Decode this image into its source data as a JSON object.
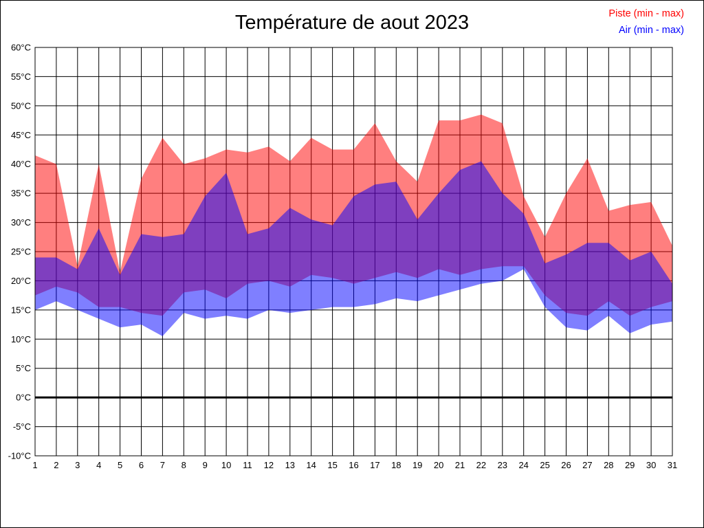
{
  "title": "Température de aout 2023",
  "legend": {
    "piste_label": "Piste (min - max)",
    "air_label": "Air (min - max)",
    "piste_color": "#ff0000",
    "air_color": "#0000ff"
  },
  "chart_data": {
    "type": "area",
    "title": "Température de aout 2023",
    "legend_position": "top-right",
    "grid": true,
    "zero_line_bold": true,
    "y_range": [
      -10,
      60
    ],
    "y_tick_step": 5,
    "y_ticks": [
      {
        "value": 60,
        "label": "60°C"
      },
      {
        "value": 55,
        "label": "55°C"
      },
      {
        "value": 50,
        "label": "50°C"
      },
      {
        "value": 45,
        "label": "45°C"
      },
      {
        "value": 40,
        "label": "40°C"
      },
      {
        "value": 35,
        "label": "35°C"
      },
      {
        "value": 30,
        "label": "30°C"
      },
      {
        "value": 25,
        "label": "25°C"
      },
      {
        "value": 20,
        "label": "20°C"
      },
      {
        "value": 15,
        "label": "15°C"
      },
      {
        "value": 10,
        "label": "10°C"
      },
      {
        "value": 5,
        "label": "5°C"
      },
      {
        "value": 0,
        "label": "0°C"
      },
      {
        "value": -5,
        "label": "-5°C"
      },
      {
        "value": -10,
        "label": "-10°C"
      }
    ],
    "x": [
      1,
      2,
      3,
      4,
      5,
      6,
      7,
      8,
      9,
      10,
      11,
      12,
      13,
      14,
      15,
      16,
      17,
      18,
      19,
      20,
      21,
      22,
      23,
      24,
      25,
      26,
      27,
      28,
      29,
      30,
      31
    ],
    "x_tick_labels": [
      "1",
      "2",
      "3",
      "4",
      "5",
      "6",
      "7",
      "8",
      "9",
      "10",
      "11",
      "12",
      "13",
      "14",
      "15",
      "16",
      "17",
      "18",
      "19",
      "20",
      "21",
      "22",
      "23",
      "24",
      "25",
      "26",
      "27",
      "28",
      "29",
      "30",
      "31"
    ],
    "series": [
      {
        "id": "piste",
        "name": "Piste (min - max)",
        "color": "#ff0000",
        "fill_opacity": 0.5,
        "max": [
          41.5,
          40,
          22.5,
          40,
          21.5,
          37.5,
          44.5,
          40,
          41,
          42.5,
          42,
          43,
          40.5,
          44.5,
          42.5,
          42.5,
          47,
          40.5,
          37,
          47.5,
          47.5,
          48.5,
          47,
          34.5,
          27.5,
          35,
          41,
          32,
          33,
          33.5,
          26
        ],
        "min": [
          17.5,
          19,
          18,
          15.5,
          15.5,
          14.5,
          14,
          18,
          18.5,
          17,
          19.5,
          20,
          19,
          21,
          20.5,
          19.5,
          20.5,
          21.5,
          20.5,
          22,
          21,
          22,
          22.5,
          22.5,
          17.5,
          14.5,
          14,
          16.5,
          14,
          15.5,
          16.5
        ]
      },
      {
        "id": "air",
        "name": "Air (min - max)",
        "color": "#0000ff",
        "fill_opacity": 0.5,
        "max": [
          24,
          24,
          22,
          29,
          21,
          28,
          27.5,
          28,
          34.5,
          38.5,
          28,
          29,
          32.5,
          30.5,
          29.5,
          34.5,
          36.5,
          37,
          30.5,
          35,
          39,
          40.5,
          35,
          31.5,
          23,
          24.5,
          26.5,
          26.5,
          23.5,
          25,
          19.5
        ],
        "min": [
          15,
          16.5,
          15,
          13.5,
          12,
          12.5,
          10.5,
          14.5,
          13.5,
          14,
          13.5,
          15,
          14.5,
          15,
          15.5,
          15.5,
          16,
          17,
          16.5,
          17.5,
          18.5,
          19.5,
          20,
          22,
          15.5,
          12,
          11.5,
          14,
          11,
          12.5,
          13
        ]
      }
    ]
  }
}
